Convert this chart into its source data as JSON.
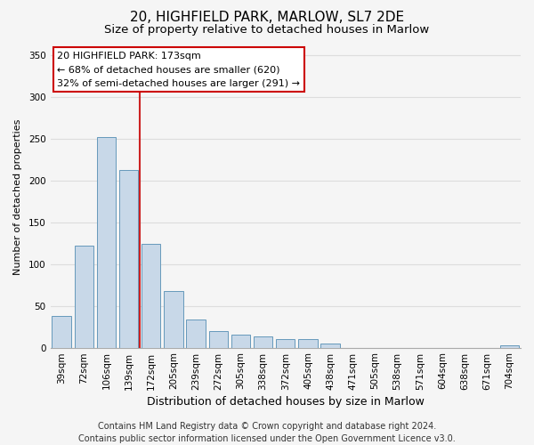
{
  "title": "20, HIGHFIELD PARK, MARLOW, SL7 2DE",
  "subtitle": "Size of property relative to detached houses in Marlow",
  "xlabel": "Distribution of detached houses by size in Marlow",
  "ylabel": "Number of detached properties",
  "bar_labels": [
    "39sqm",
    "72sqm",
    "106sqm",
    "139sqm",
    "172sqm",
    "205sqm",
    "239sqm",
    "272sqm",
    "305sqm",
    "338sqm",
    "372sqm",
    "405sqm",
    "438sqm",
    "471sqm",
    "505sqm",
    "538sqm",
    "571sqm",
    "604sqm",
    "638sqm",
    "671sqm",
    "704sqm"
  ],
  "bar_values": [
    38,
    122,
    252,
    213,
    124,
    68,
    34,
    20,
    16,
    13,
    10,
    10,
    5,
    0,
    0,
    0,
    0,
    0,
    0,
    0,
    3
  ],
  "bar_color": "#c8d8e8",
  "bar_edge_color": "#6699bb",
  "vline_color": "#cc2222",
  "vline_index": 4,
  "ylim": [
    0,
    360
  ],
  "yticks": [
    0,
    50,
    100,
    150,
    200,
    250,
    300,
    350
  ],
  "annotation_title": "20 HIGHFIELD PARK: 173sqm",
  "annotation_line1": "← 68% of detached houses are smaller (620)",
  "annotation_line2": "32% of semi-detached houses are larger (291) →",
  "annotation_box_facecolor": "#ffffff",
  "annotation_box_edgecolor": "#cc0000",
  "footer_line1": "Contains HM Land Registry data © Crown copyright and database right 2024.",
  "footer_line2": "Contains public sector information licensed under the Open Government Licence v3.0.",
  "title_fontsize": 11,
  "subtitle_fontsize": 9.5,
  "xlabel_fontsize": 9,
  "ylabel_fontsize": 8,
  "tick_fontsize": 7.5,
  "annotation_fontsize": 8,
  "footer_fontsize": 7,
  "background_color": "#f5f5f5",
  "plot_bg_color": "#f5f5f5",
  "grid_color": "#dddddd"
}
